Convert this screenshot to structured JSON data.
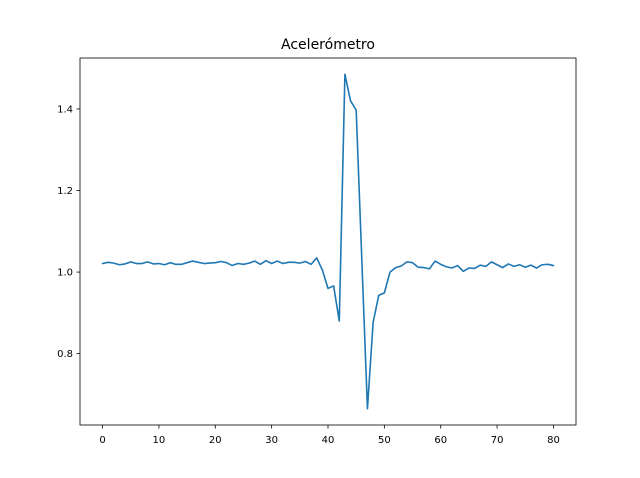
{
  "chart_data": {
    "type": "line",
    "title": "Acelerómetro",
    "xlabel": "",
    "ylabel": "",
    "xlim": [
      -4,
      84
    ],
    "ylim": [
      0.625,
      1.525
    ],
    "xticks": [
      0,
      10,
      20,
      30,
      40,
      50,
      60,
      70,
      80
    ],
    "yticks": [
      0.8,
      1.0,
      1.2,
      1.4
    ],
    "xtick_labels": [
      "0",
      "10",
      "20",
      "30",
      "40",
      "50",
      "60",
      "70",
      "80"
    ],
    "ytick_labels": [
      "0.8",
      "1.0",
      "1.2",
      "1.4"
    ],
    "grid": false,
    "series": [
      {
        "color": "#1f77b4",
        "x": [
          0,
          1,
          2,
          3,
          4,
          5,
          6,
          7,
          8,
          9,
          10,
          11,
          12,
          13,
          14,
          15,
          16,
          17,
          18,
          19,
          20,
          21,
          22,
          23,
          24,
          25,
          26,
          27,
          28,
          29,
          30,
          31,
          32,
          33,
          34,
          35,
          36,
          37,
          38,
          39,
          40,
          41,
          42,
          43,
          44,
          45,
          46,
          47,
          48,
          49,
          50,
          51,
          52,
          53,
          54,
          55,
          56,
          57,
          58,
          59,
          60,
          61,
          62,
          63,
          64,
          65,
          66,
          67,
          68,
          69,
          70,
          71,
          72,
          73,
          74,
          75,
          76,
          77,
          78,
          79,
          80
        ],
        "values": [
          1.021,
          1.024,
          1.022,
          1.018,
          1.02,
          1.025,
          1.021,
          1.021,
          1.025,
          1.02,
          1.021,
          1.018,
          1.023,
          1.019,
          1.019,
          1.023,
          1.027,
          1.024,
          1.021,
          1.022,
          1.023,
          1.026,
          1.023,
          1.016,
          1.021,
          1.019,
          1.022,
          1.027,
          1.019,
          1.028,
          1.021,
          1.027,
          1.021,
          1.024,
          1.024,
          1.022,
          1.026,
          1.019,
          1.035,
          1.005,
          0.96,
          0.966,
          0.88,
          1.485,
          1.42,
          1.397,
          1.03,
          0.665,
          0.876,
          0.943,
          0.949,
          1.0,
          1.011,
          1.015,
          1.025,
          1.023,
          1.012,
          1.011,
          1.008,
          1.027,
          1.019,
          1.013,
          1.01,
          1.016,
          1.002,
          1.01,
          1.009,
          1.017,
          1.014,
          1.025,
          1.018,
          1.011,
          1.02,
          1.014,
          1.018,
          1.012,
          1.017,
          1.01,
          1.018,
          1.019,
          1.016
        ]
      }
    ]
  }
}
